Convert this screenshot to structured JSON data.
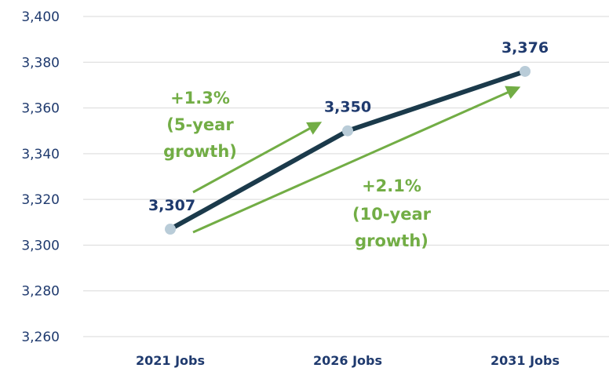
{
  "chart_data": {
    "type": "line",
    "categories": [
      "2021 Jobs",
      "2026 Jobs",
      "2031 Jobs"
    ],
    "values": [
      3307,
      3350,
      3376
    ],
    "data_labels": [
      "3,307",
      "3,350",
      "3,376"
    ],
    "ylim": [
      3260,
      3400
    ],
    "yticks": [
      3260,
      3280,
      3300,
      3320,
      3340,
      3360,
      3380,
      3400
    ],
    "ytick_labels": [
      "3,260",
      "3,280",
      "3,300",
      "3,320",
      "3,340",
      "3,360",
      "3,380",
      "3,400"
    ],
    "grid": true,
    "annotations": [
      {
        "lines": [
          "+1.3%",
          "(5-year",
          "growth)"
        ]
      },
      {
        "lines": [
          "+2.1%",
          "(10-year",
          "growth)"
        ]
      }
    ]
  },
  "colors": {
    "line": "#1b3a4b",
    "marker": "#b9ccd8",
    "label": "#1f3a6e",
    "growth": "#72ad45",
    "grid": "#d9d9d9"
  }
}
